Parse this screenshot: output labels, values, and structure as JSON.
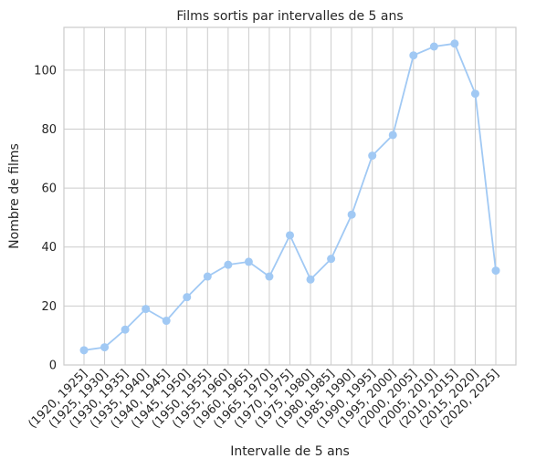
{
  "chart_data": {
    "type": "line",
    "title": "Films sortis par intervalles de 5 ans",
    "xlabel": "Intervalle de 5 ans",
    "ylabel": "Nombre de films",
    "categories": [
      "(1920, 1925]",
      "(1925, 1930]",
      "(1930, 1935]",
      "(1935, 1940]",
      "(1940, 1945]",
      "(1945, 1950]",
      "(1950, 1955]",
      "(1955, 1960]",
      "(1960, 1965]",
      "(1965, 1970]",
      "(1970, 1975]",
      "(1975, 1980]",
      "(1980, 1985]",
      "(1985, 1990]",
      "(1990, 1995]",
      "(1995, 2000]",
      "(2000, 2005]",
      "(2005, 2010]",
      "(2010, 2015]",
      "(2015, 2020]",
      "(2020, 2025]"
    ],
    "values": [
      5,
      6,
      12,
      19,
      15,
      23,
      30,
      34,
      35,
      30,
      44,
      29,
      36,
      51,
      71,
      78,
      105,
      108,
      109,
      92,
      32
    ],
    "ylim": [
      0,
      114.5
    ],
    "yticks": [
      0,
      20,
      40,
      60,
      80,
      100
    ],
    "grid": true,
    "marker": "circle",
    "color": "#a1c9f4"
  }
}
